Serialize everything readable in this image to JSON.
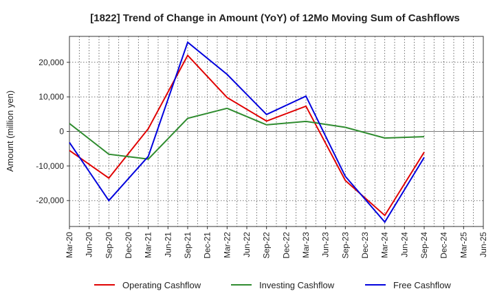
{
  "chart_data": {
    "type": "line",
    "title": "[1822]  Trend of Change in Amount (YoY) of 12Mo Moving Sum of Cashflows",
    "ylabel": "Amount (million yen)",
    "xlabel": "",
    "categories": [
      "Mar-20",
      "Jun-20",
      "Sep-20",
      "Dec-20",
      "Mar-21",
      "Jun-21",
      "Sep-21",
      "Dec-21",
      "Mar-22",
      "Jun-22",
      "Sep-22",
      "Dec-22",
      "Mar-23",
      "Jun-23",
      "Sep-23",
      "Dec-23",
      "Mar-24",
      "Jun-24",
      "Sep-24",
      "Dec-24",
      "Mar-25",
      "Jun-25"
    ],
    "ylim": [
      -27500,
      27500
    ],
    "yticks": [
      -20000,
      -10000,
      0,
      10000,
      20000
    ],
    "ytick_labels": [
      "-20,000",
      "-10,000",
      "0",
      "10,000",
      "20,000"
    ],
    "grid": true,
    "legend_position": "bottom",
    "series": [
      {
        "name": "Operating Cashflow",
        "color": "#e00000",
        "values": [
          -5500,
          null,
          -13500,
          null,
          800,
          null,
          22000,
          null,
          9800,
          null,
          3000,
          null,
          7300,
          null,
          -14200,
          null,
          -24300,
          null,
          -6000,
          null,
          null,
          null
        ]
      },
      {
        "name": "Investing Cashflow",
        "color": "#2e8b2e",
        "values": [
          2300,
          null,
          -6600,
          null,
          -8000,
          null,
          3800,
          null,
          6700,
          null,
          1900,
          null,
          2900,
          null,
          1200,
          null,
          -1900,
          null,
          -1500,
          null,
          null,
          null
        ]
      },
      {
        "name": "Free Cashflow",
        "color": "#0000dd",
        "values": [
          -3200,
          null,
          -20000,
          null,
          -7200,
          null,
          25800,
          null,
          16500,
          null,
          4900,
          null,
          10200,
          null,
          -13000,
          null,
          -26200,
          null,
          -7500,
          null,
          null,
          null
        ]
      }
    ]
  }
}
